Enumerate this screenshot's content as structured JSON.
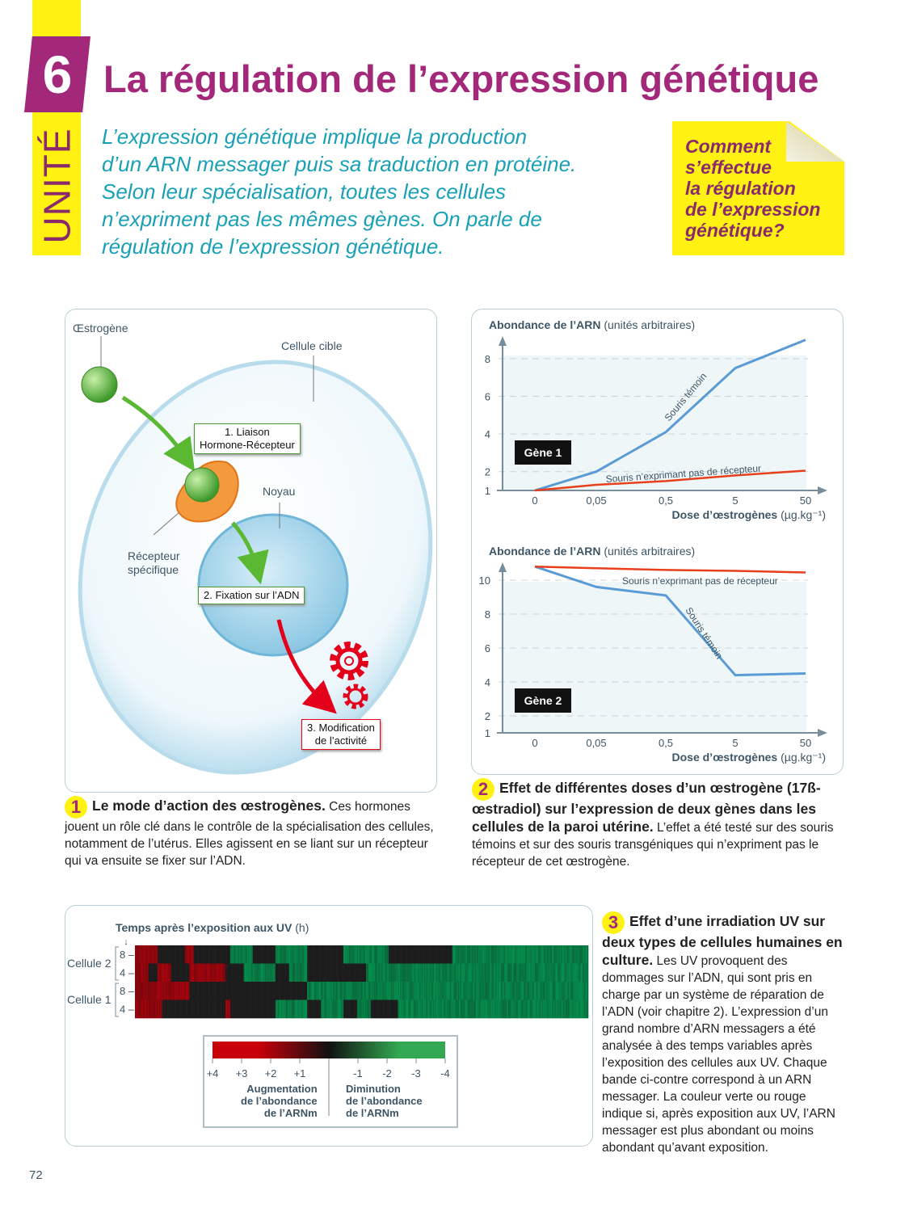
{
  "header": {
    "unit_label": "UNITÉ",
    "unit_number": "6",
    "title": "La régulation de l’expression génétique",
    "intro": [
      "L’expression génétique implique la production",
      "d’un ARN messager puis sa traduction en protéine.",
      "Selon leur spécialisation, toutes les cellules",
      "n’expriment pas les mêmes gènes. On parle de",
      "régulation de l’expression génétique."
    ],
    "question": [
      "Comment",
      "s’effectue",
      "la régulation",
      "de l’expression",
      "génétique?"
    ]
  },
  "doc1": {
    "estrogen": "Œstrogène",
    "target_cell": "Cellule cible",
    "nucleus": "Noyau",
    "receptor": [
      "Récepteur",
      "spécifique"
    ],
    "step1": [
      "1. Liaison",
      "Hormone-Récepteur"
    ],
    "step2": "2. Fixation sur l’ADN",
    "step3": [
      "3. Modification",
      "de l’activité"
    ],
    "caption_num": "1",
    "caption_bold": "Le mode d’action des œstrogènes.",
    "caption_text": " Ces hormones jouent un rôle clé dans le contrôle de la spécialisation des cellules, notamment de l’utérus. Elles  agissent en se liant sur un récepteur qui va ensuite se fixer sur l’ADN."
  },
  "doc2": {
    "caption_num": "2",
    "caption_bold": "Effet de différentes doses d’un œstrogène (17ß-œstradiol) sur l’expression de deux gènes dans les cellules de la paroi utérine.",
    "caption_text": " L’effet a été testé sur des souris témoins et sur des souris transgéniques qui n’expriment pas le récepteur de cet œstrogène."
  },
  "chart_data": [
    {
      "type": "line",
      "title": "Gène 1",
      "ylabel_bold": "Abondance de l’ARN",
      "ylabel_unit": "(unités arbitraires)",
      "xlabel_bold": "Dose d’œstrogènes",
      "xlabel_unit": "(µg.kg⁻¹)",
      "categories": [
        "0",
        "0,05",
        "0,5",
        "5",
        "50"
      ],
      "yticks": [
        1,
        2,
        4,
        6,
        8
      ],
      "ylim": [
        1,
        9.5
      ],
      "grid": true,
      "series": [
        {
          "name": "Souris témoin",
          "color": "#5b9bd5",
          "values": [
            1,
            2,
            4.1,
            7.5,
            9
          ]
        },
        {
          "name": "Souris n’exprimant pas de récepteur",
          "color": "#e8401c",
          "values": [
            1,
            1.3,
            1.5,
            1.8,
            2.05
          ]
        }
      ]
    },
    {
      "type": "line",
      "title": "Gène 2",
      "ylabel_bold": "Abondance de l’ARN",
      "ylabel_unit": "(unités arbitraires)",
      "xlabel_bold": "Dose d’œstrogènes",
      "xlabel_unit": "(µg.kg⁻¹)",
      "categories": [
        "0",
        "0,05",
        "0,5",
        "5",
        "50"
      ],
      "yticks": [
        1,
        2,
        4,
        6,
        8,
        10
      ],
      "ylim": [
        1,
        11
      ],
      "grid": true,
      "series": [
        {
          "name": "Souris témoin",
          "color": "#5b9bd5",
          "values": [
            10.8,
            9.6,
            9.1,
            4.4,
            4.5
          ]
        },
        {
          "name": "Souris n’exprimant pas de récepteur",
          "color": "#e8401c",
          "values": [
            10.8,
            10.7,
            10.6,
            10.55,
            10.45
          ]
        }
      ]
    },
    {
      "type": "heatmap",
      "title": "Temps après l’exposition aux UV",
      "title_unit": "(h)",
      "groups": [
        "Cellule 2",
        "Cellule 1"
      ],
      "rows": [
        {
          "group": "Cellule 2",
          "time": "8",
          "runs": [
            [
              5,
              3
            ],
            [
              11,
              0
            ],
            [
              13,
              3
            ],
            [
              21,
              0
            ],
            [
              26,
              -3
            ],
            [
              31,
              0
            ],
            [
              38,
              -3
            ],
            [
              46,
              0
            ],
            [
              56,
              -3
            ],
            [
              70,
              0
            ],
            [
              100,
              -3
            ]
          ]
        },
        {
          "group": "Cellule 2",
          "time": "4",
          "runs": [
            [
              3,
              3
            ],
            [
              5,
              0
            ],
            [
              8,
              3
            ],
            [
              12,
              0
            ],
            [
              20,
              3
            ],
            [
              24,
              0
            ],
            [
              31,
              -3
            ],
            [
              34,
              0
            ],
            [
              38,
              -3
            ],
            [
              51,
              0
            ],
            [
              100,
              -3
            ]
          ]
        },
        {
          "group": "Cellule 1",
          "time": "8",
          "runs": [
            [
              12,
              3
            ],
            [
              38,
              0
            ],
            [
              100,
              -3
            ]
          ]
        },
        {
          "group": "Cellule 1",
          "time": "4",
          "runs": [
            [
              6,
              3
            ],
            [
              20,
              0
            ],
            [
              21,
              3
            ],
            [
              31,
              0
            ],
            [
              38,
              -3
            ],
            [
              41,
              0
            ],
            [
              46,
              -3
            ],
            [
              49,
              0
            ],
            [
              52,
              -3
            ],
            [
              58,
              0
            ],
            [
              100,
              -3
            ]
          ]
        }
      ],
      "scale_ticks": [
        "+4",
        "+3",
        "+2",
        "+1",
        "-1",
        "-2",
        "-3",
        "-4"
      ],
      "scale_colors": {
        "increase": "#c8000a",
        "zero": "#111111",
        "decrease": "#33a852"
      },
      "increase_label": [
        "Augmentation",
        "de l’abondance",
        "de l’ARNm"
      ],
      "decrease_label": [
        "Diminution",
        "de l’abondance",
        "de l’ARNm"
      ]
    }
  ],
  "doc3": {
    "caption_num": "3",
    "caption_bold": "Effet d’une irradiation UV sur deux types de cellules humaines en culture.",
    "caption_text": " Les UV provoquent des dommages sur l’ADN, qui sont pris en charge par un système de réparation de l’ADN (voir chapitre 2). L’expression d’un grand nombre d’ARN messagers a été analysée à des temps variables après l’exposition des cellules aux UV. Chaque bande ci-contre correspond à un ARN messager. La couleur verte ou rouge indique si, après exposition aux UV, l’ARN messager est plus abondant ou moins abondant qu’avant exposition."
  },
  "page_number": "72",
  "colors": {
    "accent": "#a3287a",
    "yellow": "#fff212",
    "teal": "#1aa0b5"
  }
}
